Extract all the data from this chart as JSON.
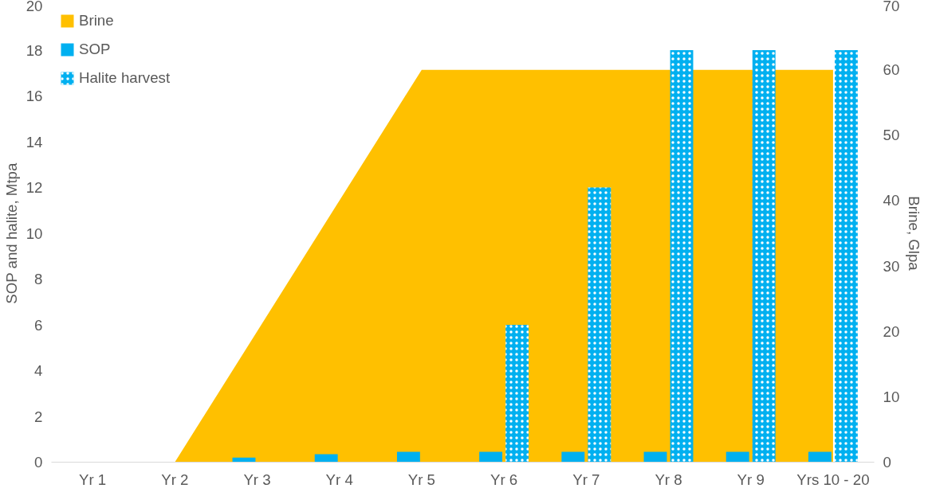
{
  "chart_data": {
    "type": "bar",
    "categories": [
      "Yr 1",
      "Yr 2",
      "Yr 3",
      "Yr 4",
      "Yr 5",
      "Yr 6",
      "Yr 7",
      "Yr 8",
      "Yr 9",
      "Yrs 10 - 20"
    ],
    "ylabel": "SOP and halite, Mtpa",
    "y2label": "Brine, Glpa",
    "ylim": [
      0,
      20
    ],
    "yticks": [
      0,
      2,
      4,
      6,
      8,
      10,
      12,
      14,
      16,
      18,
      20
    ],
    "y2lim": [
      0,
      70
    ],
    "y2ticks": [
      0,
      10,
      20,
      30,
      40,
      50,
      60,
      70
    ],
    "legend": "top left",
    "grid": false,
    "series": [
      {
        "name": "Brine",
        "type": "area",
        "axis": "y2",
        "color": "#ffc000",
        "values": [
          0,
          0,
          20,
          40,
          60,
          60,
          60,
          60,
          60,
          60
        ]
      },
      {
        "name": "SOP",
        "color": "#00b0f0",
        "values": [
          null,
          null,
          0.2,
          0.35,
          0.45,
          0.45,
          0.45,
          0.45,
          0.45,
          0.45
        ]
      },
      {
        "name": "Halite harvest",
        "color": "#00b0f0",
        "values": [
          null,
          null,
          null,
          null,
          null,
          6,
          12,
          18,
          18,
          18
        ]
      }
    ]
  }
}
